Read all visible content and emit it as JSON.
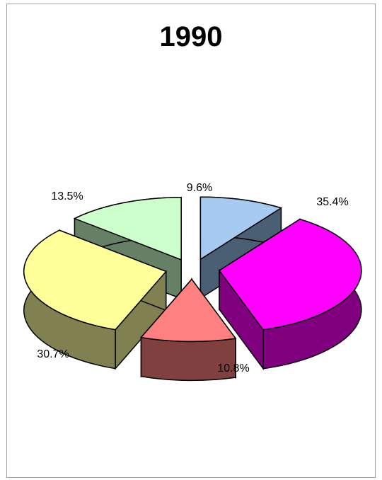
{
  "chart_data": {
    "type": "pie",
    "title": "1990",
    "slices": [
      {
        "label": "9.6%",
        "value": 9.6,
        "color": "#A6CAF0",
        "side": "#4A5E74"
      },
      {
        "label": "35.4%",
        "value": 35.4,
        "color": "#FF00FF",
        "side": "#800080"
      },
      {
        "label": "10.8%",
        "value": 10.8,
        "color": "#FF8080",
        "side": "#804040"
      },
      {
        "label": "30.7%",
        "value": 30.7,
        "color": "#FFFF99",
        "side": "#808050"
      },
      {
        "label": "13.5%",
        "value": 13.5,
        "color": "#CCFFCC",
        "side": "#668066"
      }
    ],
    "style": "3d-exploded"
  }
}
